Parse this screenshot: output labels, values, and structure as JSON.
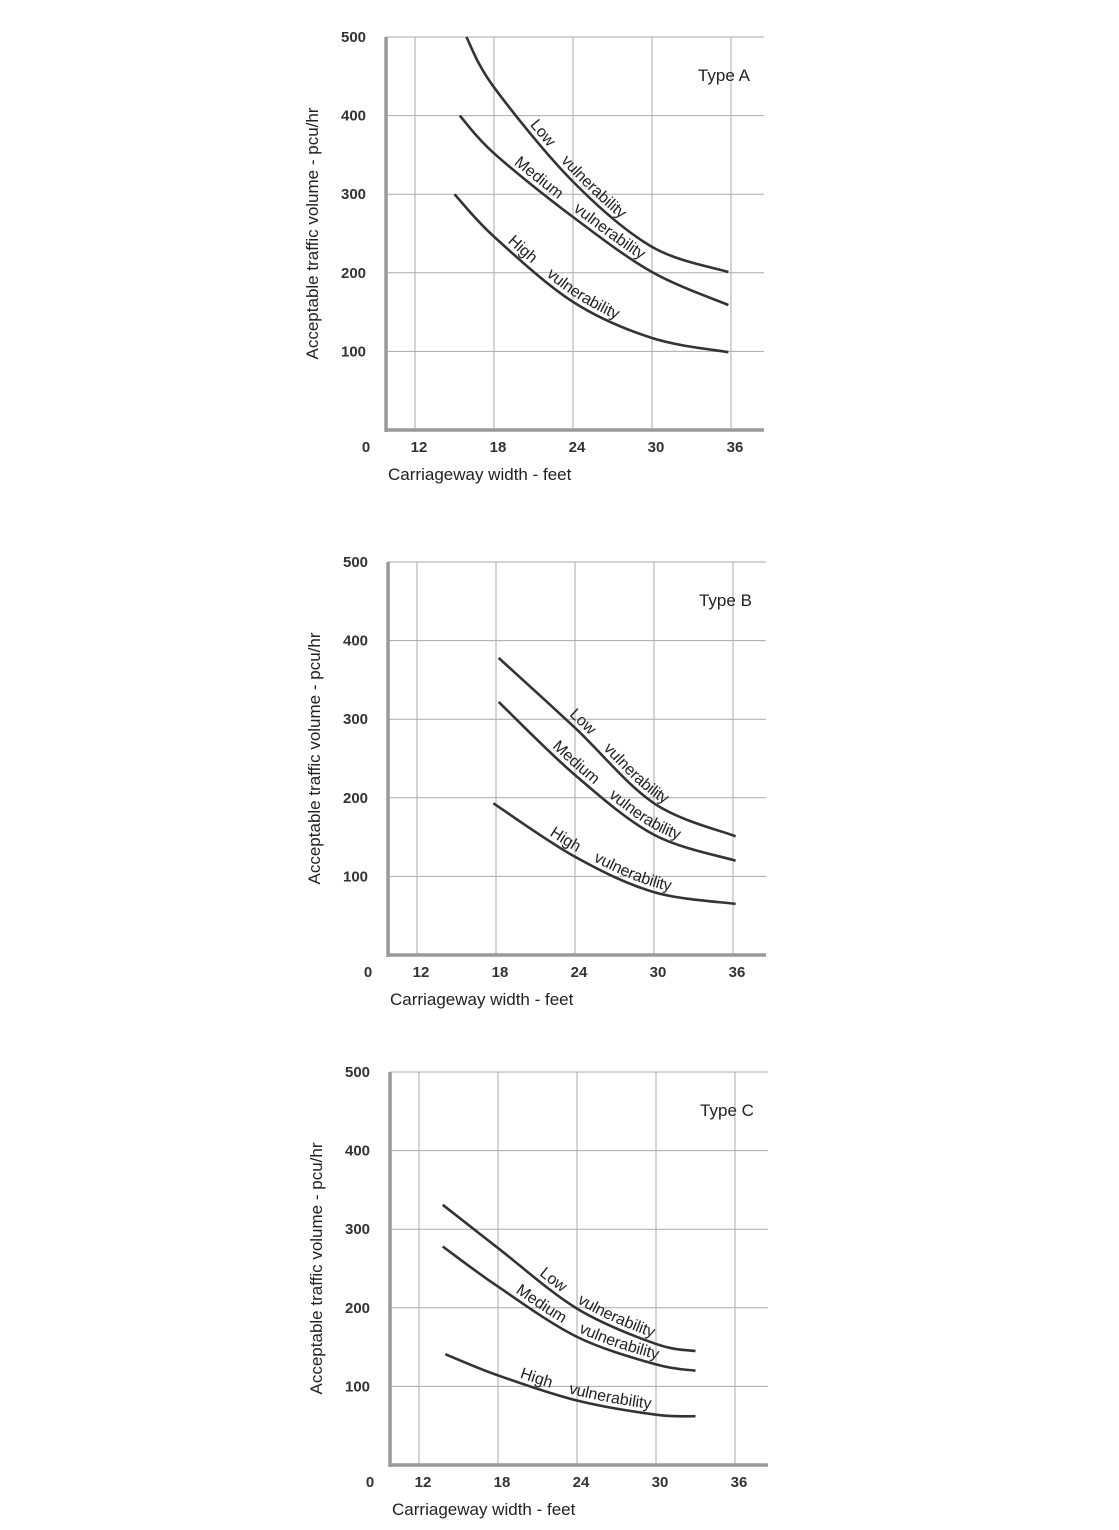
{
  "chart_data": [
    {
      "type": "line",
      "title": "Type A",
      "xlabel": "Carriageway width - feet",
      "ylabel": "Acceptable traffic volume - pcu/hr",
      "origin_label": "0",
      "xticks": [
        12,
        18,
        24,
        30,
        36
      ],
      "yticks": [
        100,
        200,
        300,
        400,
        500
      ],
      "xlim": [
        9.8,
        38.5
      ],
      "ylim": [
        0,
        500
      ],
      "grid": true,
      "series": [
        {
          "name": "Low vulnerability",
          "x": [
            15.9,
            18,
            24,
            30,
            35.8
          ],
          "y": [
            500,
            436,
            316,
            233,
            201
          ]
        },
        {
          "name": "Medium vulnerability",
          "x": [
            15.4,
            18,
            24,
            30,
            35.8
          ],
          "y": [
            400,
            352,
            271,
            201,
            159
          ]
        },
        {
          "name": "High vulnerability",
          "x": [
            15.0,
            18,
            24,
            30,
            35.8
          ],
          "y": [
            300,
            246,
            163,
            117,
            99
          ]
        }
      ]
    },
    {
      "type": "line",
      "title": "Type B",
      "xlabel": "Carriageway width - feet",
      "ylabel": "Acceptable traffic volume - pcu/hr",
      "origin_label": "0",
      "xticks": [
        12,
        18,
        24,
        30,
        36
      ],
      "yticks": [
        100,
        200,
        300,
        400,
        500
      ],
      "xlim": [
        9.8,
        38.5
      ],
      "ylim": [
        0,
        500
      ],
      "grid": true,
      "series": [
        {
          "name": "Low vulnerability",
          "x": [
            18.2,
            24,
            30,
            36.2
          ],
          "y": [
            378,
            289,
            193,
            151
          ]
        },
        {
          "name": "Medium vulnerability",
          "x": [
            18.2,
            24,
            30,
            36.2
          ],
          "y": [
            322,
            229,
            153,
            120
          ]
        },
        {
          "name": "High vulnerability",
          "x": [
            17.8,
            24,
            30,
            36.2
          ],
          "y": [
            193,
            125,
            80,
            65
          ]
        }
      ]
    },
    {
      "type": "line",
      "title": "Type C",
      "xlabel": "Carriageway width - feet",
      "ylabel": "Acceptable traffic volume - pcu/hr",
      "origin_label": "0",
      "xticks": [
        12,
        18,
        24,
        30,
        36
      ],
      "yticks": [
        100,
        200,
        300,
        400,
        500
      ],
      "xlim": [
        9.8,
        38.5
      ],
      "ylim": [
        0,
        500
      ],
      "grid": true,
      "series": [
        {
          "name": "Low vulnerability",
          "x": [
            13.8,
            18,
            24,
            30,
            33.0
          ],
          "y": [
            331,
            276,
            199,
            154,
            145
          ]
        },
        {
          "name": "Medium vulnerability",
          "x": [
            13.8,
            18,
            24,
            30,
            33.0
          ],
          "y": [
            278,
            227,
            163,
            128,
            120
          ]
        },
        {
          "name": "High vulnerability",
          "x": [
            14.0,
            18,
            24,
            30,
            33.0
          ],
          "y": [
            141,
            114,
            82,
            64,
            62
          ]
        }
      ]
    }
  ]
}
